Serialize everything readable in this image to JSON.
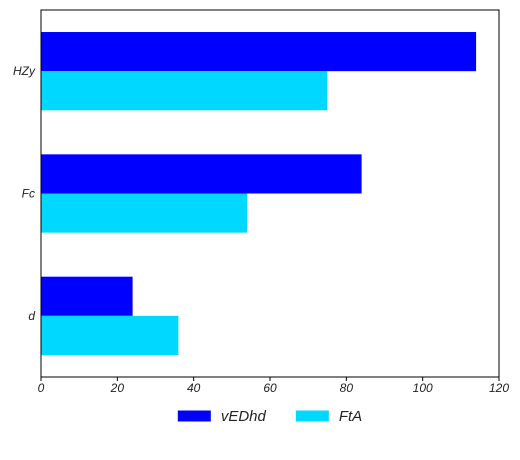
{
  "chart_data": {
    "type": "bar",
    "orientation": "horizontal",
    "categories": [
      "HZy",
      "Fc",
      "d"
    ],
    "series": [
      {
        "name": "vEDhd",
        "color": "#0000FF",
        "values": [
          114,
          84,
          24
        ]
      },
      {
        "name": "FtA",
        "color": "#00D8FF",
        "values": [
          75,
          54,
          36
        ]
      }
    ],
    "xlim": [
      0,
      120
    ],
    "xticks": [
      "0",
      "20",
      "40",
      "60",
      "80",
      "100",
      "120"
    ],
    "grid": false,
    "legend_position": "bottom-center"
  }
}
